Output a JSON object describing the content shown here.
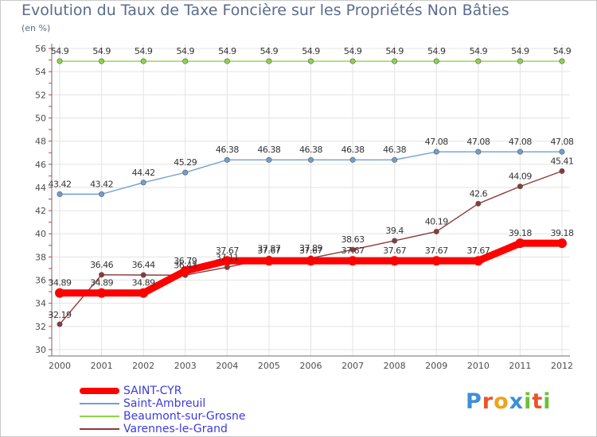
{
  "chart_data": {
    "type": "line",
    "title": "Evolution du Taux de Taxe Foncière sur les Propriétés Non Bâties",
    "ylabel": "(en %)",
    "xlabel": "",
    "categories": [
      "2000",
      "2001",
      "2002",
      "2003",
      "2004",
      "2005",
      "2006",
      "2007",
      "2008",
      "2009",
      "2010",
      "2011",
      "2012"
    ],
    "ylim": [
      30,
      56
    ],
    "yticks": [
      "30",
      "32",
      "34",
      "36",
      "38",
      "40",
      "42",
      "44",
      "46",
      "48",
      "50",
      "52",
      "54",
      "56"
    ],
    "grid": true,
    "legend_position": "bottom-left",
    "series": [
      {
        "name": "SAINT-CYR",
        "color": "#ff0000",
        "values": [
          34.89,
          34.89,
          34.89,
          36.79,
          37.67,
          37.67,
          37.67,
          37.67,
          37.67,
          37.67,
          37.67,
          39.18,
          39.18
        ],
        "labels": [
          "34.89",
          "34.89",
          "34.89",
          "36.79",
          "37.67",
          "37.67",
          "37.67",
          "37.67",
          "37.67",
          "37.67",
          "37.67",
          "39.18",
          "39.18"
        ]
      },
      {
        "name": "Saint-Ambreuil",
        "color": "#6fa0d0",
        "values": [
          43.42,
          43.42,
          44.42,
          45.29,
          46.38,
          46.38,
          46.38,
          46.38,
          46.38,
          47.08,
          47.08,
          47.08,
          47.08
        ],
        "labels": [
          "43.42",
          "43.42",
          "44.42",
          "45.29",
          "46.38",
          "46.38",
          "46.38",
          "46.38",
          "46.38",
          "47.08",
          "47.08",
          "47.08",
          "47.08"
        ]
      },
      {
        "name": "Beaumont-sur-Grosne",
        "color": "#8ed44a",
        "values": [
          54.9,
          54.9,
          54.9,
          54.9,
          54.9,
          54.9,
          54.9,
          54.9,
          54.9,
          54.9,
          54.9,
          54.9,
          54.9
        ],
        "labels": [
          "54.9",
          "54.9",
          "54.9",
          "54.9",
          "54.9",
          "54.9",
          "54.9",
          "54.9",
          "54.9",
          "54.9",
          "54.9",
          "54.9",
          "54.9"
        ]
      },
      {
        "name": "Varennes-le-Grand",
        "color": "#8b3a3a",
        "values": [
          32.19,
          36.46,
          36.44,
          36.43,
          37.11,
          37.87,
          37.89,
          38.63,
          39.4,
          40.19,
          42.6,
          44.09,
          45.41
        ],
        "labels": [
          "32.19",
          "36.46",
          "36.44",
          "36.43",
          "37.11",
          "37.87",
          "37.89",
          "38.63",
          "39.4",
          "40.19",
          "42.6",
          "44.09",
          "45.41"
        ]
      }
    ]
  },
  "logo": {
    "letters": [
      "P",
      "r",
      "o",
      "x",
      "i",
      "t",
      "i"
    ]
  }
}
